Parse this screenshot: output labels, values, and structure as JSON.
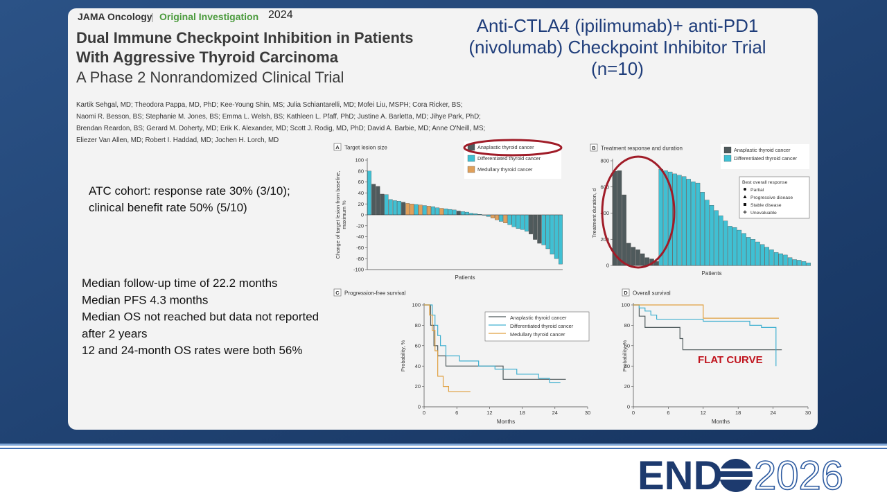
{
  "header": {
    "journal": "JAMA Oncology",
    "separator": "|",
    "section": "Original Investigation",
    "year": "2024"
  },
  "article": {
    "title_lines": [
      "Dual Immune Checkpoint Inhibition in Patients",
      "With Aggressive Thyroid Carcinoma"
    ],
    "subtitle": "A Phase 2 Nonrandomized Clinical Trial",
    "author_lines": [
      "Kartik Sehgal, MD; Theodora Pappa, MD, PhD; Kee-Young Shin, MS; Julia Schiantarelli, MD; Mofei Liu, MSPH; Cora Ricker, BS;",
      "Naomi R. Besson, BS; Stephanie M. Jones, BS; Emma L. Welsh, BS; Kathleen L. Pfaff, PhD; Justine A. Barletta, MD; Jihye Park, PhD;",
      "Brendan Reardon, BS; Gerard M. Doherty, MD; Erik K. Alexander, MD; Scott J. Rodig, MD, PhD; David A. Barbie, MD; Anne O'Neill, MS;",
      "Eliezer Van Allen, MD; Robert I. Haddad, MD; Jochen H. Lorch, MD"
    ]
  },
  "slide": {
    "heading_lines": [
      "Anti-CTLA4 (ipilimumab)+ anti-PD1",
      "(nivolumab) Checkpoint Inhibitor Trial",
      "(n=10)"
    ],
    "atc_lines": [
      "ATC cohort: response rate 30% (3/10);",
      "clinical benefit rate 50% (5/10)"
    ],
    "median_lines": [
      "Median follow-up time of 22.2 months",
      "Median PFS 4.3 months",
      "Median OS not reached but data not reported",
      "after 2 years",
      "12 and 24-month OS rates were both 56%"
    ]
  },
  "logo": {
    "text": "END",
    "year": "2026"
  },
  "chart_data": [
    {
      "type": "bar",
      "panel": "A",
      "title": "Target lesion size",
      "xlabel": "Patients",
      "ylabel_lines": [
        "Change of target lesion from baseline,",
        "maximum %"
      ],
      "ylim": [
        -100,
        100
      ],
      "yticks": [
        -100,
        -80,
        -60,
        -40,
        -20,
        0,
        20,
        40,
        60,
        80,
        100
      ],
      "values": [
        80,
        56,
        52,
        38,
        37,
        28,
        26,
        25,
        23,
        21,
        20,
        19,
        18,
        17,
        16,
        15,
        13,
        12,
        11,
        10,
        9,
        7,
        6,
        5,
        3,
        2,
        1,
        -1,
        -3,
        -6,
        -9,
        -12,
        -15,
        -18,
        -22,
        -25,
        -27,
        -30,
        -35,
        -45,
        -52,
        -55,
        -62,
        -72,
        -80,
        -90
      ],
      "bar_colors": [
        "#40c0d3",
        "#4f5a5c",
        "#4f5a5c",
        "#4f5a5c",
        "#40c0d3",
        "#40c0d3",
        "#40c0d3",
        "#40c0d3",
        "#4f5a5c",
        "#e0a05a",
        "#e0a05a",
        "#40c0d3",
        "#e0a05a",
        "#40c0d3",
        "#e0a05a",
        "#40c0d3",
        "#40c0d3",
        "#e0a05a",
        "#40c0d3",
        "#40c0d3",
        "#40c0d3",
        "#4f5a5c",
        "#40c0d3",
        "#40c0d3",
        "#40c0d3",
        "#40c0d3",
        "#40c0d3",
        "#40c0d3",
        "#40c0d3",
        "#e0a05a",
        "#e0a05a",
        "#40c0d3",
        "#e0a05a",
        "#40c0d3",
        "#40c0d3",
        "#40c0d3",
        "#40c0d3",
        "#40c0d3",
        "#4f5a5c",
        "#4f5a5c",
        "#4f5a5c",
        "#40c0d3",
        "#40c0d3",
        "#40c0d3",
        "#40c0d3",
        "#40c0d3"
      ],
      "legend": [
        {
          "name": "Anaplastic thyroid cancer",
          "color": "#4f5a5c"
        },
        {
          "name": "Differentiated thyroid cancer",
          "color": "#40c0d3"
        },
        {
          "name": "Medullary thyroid cancer",
          "color": "#e0a05a"
        }
      ]
    },
    {
      "type": "bar",
      "panel": "B",
      "title": "Treatment response and duration",
      "xlabel": "Patients",
      "ylabel_lines": [
        "Treatment duration, d"
      ],
      "ylim": [
        0,
        800
      ],
      "yticks": [
        0,
        200,
        400,
        600,
        800
      ],
      "values": [
        720,
        725,
        540,
        170,
        140,
        120,
        90,
        60,
        50,
        30,
        735,
        725,
        715,
        700,
        690,
        680,
        660,
        640,
        630,
        560,
        500,
        460,
        420,
        380,
        340,
        300,
        290,
        270,
        245,
        215,
        200,
        180,
        160,
        140,
        120,
        100,
        90,
        80,
        60,
        45,
        40,
        30,
        20
      ],
      "bar_colors": [
        "#4f5a5c",
        "#4f5a5c",
        "#4f5a5c",
        "#4f5a5c",
        "#4f5a5c",
        "#4f5a5c",
        "#4f5a5c",
        "#4f5a5c",
        "#4f5a5c",
        "#4f5a5c",
        "#40c0d3",
        "#40c0d3",
        "#40c0d3",
        "#40c0d3",
        "#40c0d3",
        "#40c0d3",
        "#40c0d3",
        "#40c0d3",
        "#40c0d3",
        "#40c0d3",
        "#40c0d3",
        "#40c0d3",
        "#40c0d3",
        "#40c0d3",
        "#40c0d3",
        "#40c0d3",
        "#40c0d3",
        "#40c0d3",
        "#40c0d3",
        "#40c0d3",
        "#40c0d3",
        "#40c0d3",
        "#40c0d3",
        "#40c0d3",
        "#40c0d3",
        "#40c0d3",
        "#40c0d3",
        "#40c0d3",
        "#40c0d3",
        "#40c0d3",
        "#40c0d3",
        "#40c0d3",
        "#40c0d3"
      ],
      "legend": [
        {
          "name": "Anaplastic thyroid cancer",
          "color": "#4f5a5c"
        },
        {
          "name": "Differentiated thyroid cancer",
          "color": "#40c0d3"
        }
      ],
      "response_legend": {
        "title": "Best overall response",
        "items": [
          "Partial",
          "Progressive disease",
          "Stable disease",
          "Unevaluable"
        ]
      }
    },
    {
      "type": "line",
      "panel": "C",
      "title": "Progression-free survival",
      "xlabel": "Months",
      "ylabel_lines": [
        "Probability, %"
      ],
      "xlim": [
        0,
        30
      ],
      "xticks": [
        0,
        6,
        12,
        18,
        24,
        30
      ],
      "ylim": [
        0,
        100
      ],
      "yticks": [
        0,
        20,
        40,
        60,
        80,
        100
      ],
      "series": [
        {
          "name": "Anaplastic thyroid cancer",
          "color": "#4f5a5c",
          "x": [
            0,
            1.2,
            1.2,
            1.8,
            1.8,
            2.5,
            2.5,
            4,
            4,
            14.5,
            14.5,
            26
          ],
          "values": [
            100,
            100,
            80,
            80,
            60,
            60,
            50,
            50,
            40,
            40,
            27,
            27
          ]
        },
        {
          "name": "Differentiated thyroid cancer",
          "color": "#40b0d0",
          "x": [
            0,
            1.5,
            1.5,
            2,
            2,
            2.5,
            2.5,
            3,
            3,
            4,
            4,
            6.5,
            6.5,
            10,
            10,
            13,
            13,
            17,
            17,
            21,
            21,
            23,
            23,
            25
          ],
          "values": [
            100,
            100,
            90,
            90,
            80,
            80,
            70,
            70,
            60,
            60,
            50,
            50,
            45,
            45,
            40,
            40,
            37,
            37,
            32,
            32,
            28,
            28,
            24,
            24
          ]
        },
        {
          "name": "Medullary thyroid cancer",
          "color": "#e0a040",
          "x": [
            0,
            1,
            1,
            1.5,
            1.5,
            2,
            2,
            2.5,
            2.5,
            3.5,
            3.5,
            4.5,
            4.5,
            8.5
          ],
          "values": [
            100,
            100,
            90,
            90,
            75,
            75,
            55,
            55,
            30,
            30,
            20,
            20,
            15,
            15
          ]
        }
      ]
    },
    {
      "type": "line",
      "panel": "D",
      "title": "Overall survival",
      "xlabel": "Months",
      "ylabel_lines": [
        "Probability, %"
      ],
      "xlim": [
        0,
        30
      ],
      "xticks": [
        0,
        6,
        12,
        18,
        24,
        30
      ],
      "ylim": [
        0,
        100
      ],
      "yticks": [
        0,
        20,
        40,
        60,
        80,
        100
      ],
      "annotation": "FLAT CURVE",
      "series": [
        {
          "color": "#4f5a5c",
          "x": [
            0,
            1,
            1,
            2,
            2,
            8,
            8,
            8.5,
            8.5,
            25.5
          ],
          "values": [
            100,
            100,
            89,
            89,
            78,
            78,
            67,
            67,
            56,
            56
          ]
        },
        {
          "color": "#40b0d0",
          "x": [
            0,
            1,
            1,
            2,
            2,
            3,
            3,
            4,
            4,
            12,
            12,
            20,
            20,
            22,
            22,
            24.5,
            24.5
          ],
          "values": [
            100,
            100,
            97,
            97,
            94,
            94,
            90,
            90,
            86,
            86,
            84,
            84,
            80,
            80,
            78,
            78,
            40
          ]
        },
        {
          "color": "#e0a040",
          "x": [
            0,
            12,
            12,
            25
          ],
          "values": [
            100,
            100,
            87,
            87
          ]
        }
      ]
    }
  ]
}
